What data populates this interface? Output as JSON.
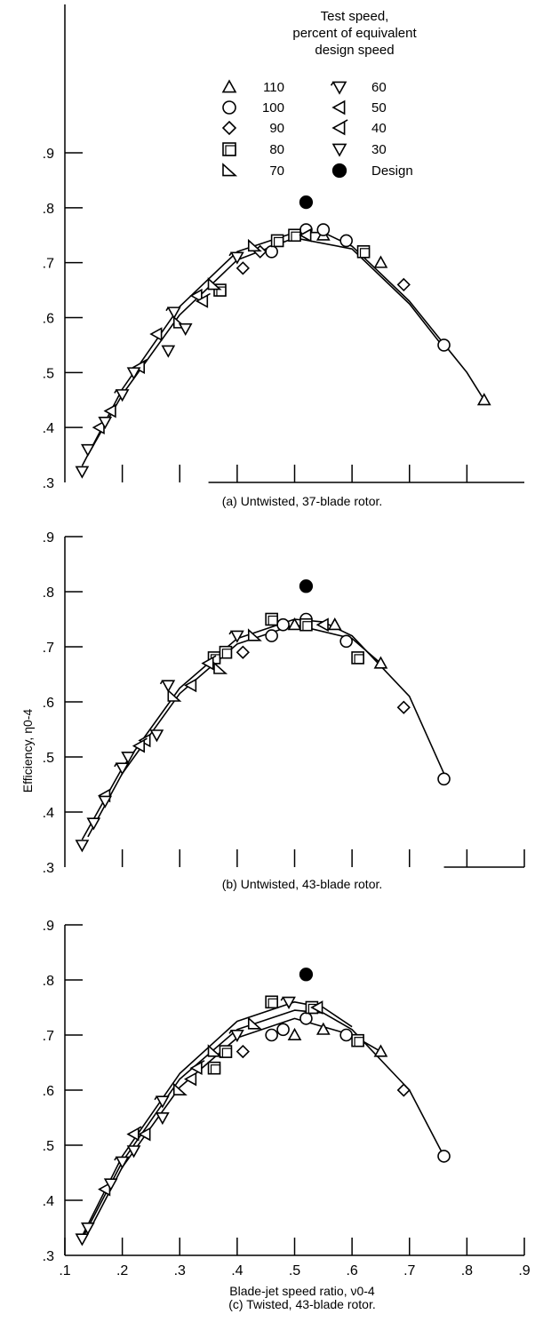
{
  "legend": {
    "title_lines": [
      "Test speed,",
      "percent of equivalent",
      "design speed"
    ],
    "entries": [
      {
        "label": "110",
        "marker": "triangle-up"
      },
      {
        "label": "100",
        "marker": "circle"
      },
      {
        "label": "90",
        "marker": "diamond"
      },
      {
        "label": "80",
        "marker": "square"
      },
      {
        "label": "70",
        "marker": "triangle-corner"
      },
      {
        "label": "60",
        "marker": "triangle-down-flag"
      },
      {
        "label": "50",
        "marker": "triangle-left"
      },
      {
        "label": "40",
        "marker": "triangle-left-flag"
      },
      {
        "label": "30",
        "marker": "triangle-down"
      },
      {
        "label": "Design",
        "marker": "filled-circle"
      }
    ]
  },
  "shared_axes": {
    "xlabel": "Blade-jet speed ratio, ν0-4",
    "ylabel": "Efficiency, η0-4",
    "x_ticks": [
      ".1",
      ".2",
      ".3",
      ".4",
      ".5",
      ".6",
      ".7",
      ".8",
      ".9"
    ],
    "y_ticks": [
      ".3",
      ".4",
      ".5",
      ".6",
      ".7",
      ".8",
      ".9"
    ]
  },
  "chart_data": [
    {
      "type": "scatter",
      "caption": "(a) Untwisted, 37-blade rotor.",
      "xlim": [
        0.1,
        0.9
      ],
      "ylim": [
        0.3,
        0.9
      ],
      "design_point": [
        0.52,
        0.81
      ],
      "series": [
        {
          "name": "110",
          "marker": "triangle-up",
          "points": [
            [
              0.55,
              0.75
            ],
            [
              0.65,
              0.7
            ],
            [
              0.83,
              0.45
            ]
          ]
        },
        {
          "name": "100",
          "marker": "circle",
          "points": [
            [
              0.46,
              0.72
            ],
            [
              0.52,
              0.76
            ],
            [
              0.55,
              0.76
            ],
            [
              0.59,
              0.74
            ],
            [
              0.76,
              0.55
            ]
          ]
        },
        {
          "name": "90",
          "marker": "diamond",
          "points": [
            [
              0.41,
              0.69
            ],
            [
              0.44,
              0.72
            ],
            [
              0.69,
              0.66
            ]
          ]
        },
        {
          "name": "80",
          "marker": "square",
          "points": [
            [
              0.37,
              0.65
            ],
            [
              0.47,
              0.74
            ],
            [
              0.5,
              0.75
            ],
            [
              0.62,
              0.72
            ]
          ]
        },
        {
          "name": "70",
          "marker": "triangle-corner",
          "points": [
            [
              0.3,
              0.59
            ],
            [
              0.36,
              0.66
            ],
            [
              0.43,
              0.73
            ]
          ]
        },
        {
          "name": "60",
          "marker": "triangle-down-flag",
          "points": [
            [
              0.2,
              0.46
            ],
            [
              0.29,
              0.61
            ],
            [
              0.4,
              0.71
            ]
          ]
        },
        {
          "name": "50",
          "marker": "triangle-left",
          "points": [
            [
              0.18,
              0.43
            ],
            [
              0.26,
              0.57
            ],
            [
              0.33,
              0.64
            ],
            [
              0.52,
              0.75
            ]
          ]
        },
        {
          "name": "40",
          "marker": "triangle-left-flag",
          "points": [
            [
              0.16,
              0.4
            ],
            [
              0.23,
              0.51
            ],
            [
              0.34,
              0.63
            ]
          ]
        },
        {
          "name": "30",
          "marker": "triangle-down",
          "points": [
            [
              0.13,
              0.32
            ],
            [
              0.14,
              0.36
            ],
            [
              0.17,
              0.41
            ],
            [
              0.22,
              0.5
            ],
            [
              0.28,
              0.54
            ],
            [
              0.31,
              0.58
            ]
          ]
        }
      ],
      "curves": [
        [
          [
            0.13,
            0.33
          ],
          [
            0.2,
            0.47
          ],
          [
            0.3,
            0.62
          ],
          [
            0.4,
            0.72
          ],
          [
            0.5,
            0.755
          ],
          [
            0.55,
            0.755
          ],
          [
            0.6,
            0.73
          ],
          [
            0.7,
            0.63
          ],
          [
            0.8,
            0.5
          ],
          [
            0.83,
            0.45
          ]
        ],
        [
          [
            0.14,
            0.35
          ],
          [
            0.2,
            0.46
          ],
          [
            0.3,
            0.605
          ],
          [
            0.4,
            0.705
          ],
          [
            0.5,
            0.745
          ],
          [
            0.6,
            0.725
          ],
          [
            0.7,
            0.625
          ],
          [
            0.76,
            0.545
          ]
        ]
      ]
    },
    {
      "type": "scatter",
      "caption": "(b) Untwisted, 43-blade rotor.",
      "xlim": [
        0.1,
        0.9
      ],
      "ylim": [
        0.3,
        0.9
      ],
      "design_point": [
        0.52,
        0.81
      ],
      "series": [
        {
          "name": "110",
          "marker": "triangle-up",
          "points": [
            [
              0.5,
              0.74
            ],
            [
              0.57,
              0.74
            ],
            [
              0.65,
              0.67
            ]
          ]
        },
        {
          "name": "100",
          "marker": "circle",
          "points": [
            [
              0.46,
              0.72
            ],
            [
              0.48,
              0.74
            ],
            [
              0.52,
              0.75
            ],
            [
              0.59,
              0.71
            ],
            [
              0.76,
              0.46
            ]
          ]
        },
        {
          "name": "90",
          "marker": "diamond",
          "points": [
            [
              0.41,
              0.69
            ],
            [
              0.69,
              0.59
            ]
          ]
        },
        {
          "name": "80",
          "marker": "square",
          "points": [
            [
              0.36,
              0.68
            ],
            [
              0.38,
              0.69
            ],
            [
              0.46,
              0.75
            ],
            [
              0.52,
              0.74
            ],
            [
              0.61,
              0.68
            ]
          ]
        },
        {
          "name": "70",
          "marker": "triangle-corner",
          "points": [
            [
              0.29,
              0.61
            ],
            [
              0.37,
              0.66
            ],
            [
              0.43,
              0.72
            ]
          ]
        },
        {
          "name": "60",
          "marker": "triangle-down-flag",
          "points": [
            [
              0.2,
              0.48
            ],
            [
              0.28,
              0.63
            ],
            [
              0.4,
              0.72
            ]
          ]
        },
        {
          "name": "50",
          "marker": "triangle-left",
          "points": [
            [
              0.17,
              0.43
            ],
            [
              0.24,
              0.53
            ],
            [
              0.32,
              0.63
            ],
            [
              0.55,
              0.74
            ]
          ]
        },
        {
          "name": "40",
          "marker": "triangle-left-flag",
          "points": [
            [
              0.23,
              0.52
            ],
            [
              0.35,
              0.67
            ]
          ]
        },
        {
          "name": "30",
          "marker": "triangle-down",
          "points": [
            [
              0.13,
              0.34
            ],
            [
              0.15,
              0.38
            ],
            [
              0.17,
              0.42
            ],
            [
              0.21,
              0.5
            ],
            [
              0.26,
              0.54
            ]
          ]
        }
      ],
      "curves": [
        [
          [
            0.13,
            0.35
          ],
          [
            0.2,
            0.48
          ],
          [
            0.3,
            0.625
          ],
          [
            0.4,
            0.715
          ],
          [
            0.5,
            0.75
          ],
          [
            0.55,
            0.745
          ],
          [
            0.6,
            0.72
          ],
          [
            0.7,
            0.61
          ],
          [
            0.76,
            0.47
          ]
        ],
        [
          [
            0.14,
            0.355
          ],
          [
            0.2,
            0.47
          ],
          [
            0.3,
            0.615
          ],
          [
            0.4,
            0.705
          ],
          [
            0.5,
            0.74
          ],
          [
            0.6,
            0.715
          ],
          [
            0.65,
            0.67
          ]
        ]
      ]
    },
    {
      "type": "scatter",
      "caption": "(c) Twisted, 43-blade rotor.",
      "xlim": [
        0.1,
        0.9
      ],
      "ylim": [
        0.3,
        0.9
      ],
      "design_point": [
        0.52,
        0.81
      ],
      "series": [
        {
          "name": "110",
          "marker": "triangle-up",
          "points": [
            [
              0.5,
              0.7
            ],
            [
              0.55,
              0.71
            ],
            [
              0.65,
              0.67
            ]
          ]
        },
        {
          "name": "100",
          "marker": "circle",
          "points": [
            [
              0.46,
              0.7
            ],
            [
              0.48,
              0.71
            ],
            [
              0.52,
              0.73
            ],
            [
              0.59,
              0.7
            ],
            [
              0.76,
              0.48
            ]
          ]
        },
        {
          "name": "90",
          "marker": "diamond",
          "points": [
            [
              0.41,
              0.67
            ],
            [
              0.69,
              0.6
            ]
          ]
        },
        {
          "name": "80",
          "marker": "square",
          "points": [
            [
              0.36,
              0.64
            ],
            [
              0.38,
              0.67
            ],
            [
              0.46,
              0.76
            ],
            [
              0.53,
              0.75
            ],
            [
              0.61,
              0.69
            ]
          ]
        },
        {
          "name": "70",
          "marker": "triangle-corner",
          "points": [
            [
              0.3,
              0.6
            ],
            [
              0.36,
              0.67
            ],
            [
              0.43,
              0.72
            ]
          ]
        },
        {
          "name": "60",
          "marker": "triangle-down-flag",
          "points": [
            [
              0.2,
              0.47
            ],
            [
              0.27,
              0.58
            ],
            [
              0.4,
              0.7
            ],
            [
              0.49,
              0.76
            ]
          ]
        },
        {
          "name": "50",
          "marker": "triangle-left",
          "points": [
            [
              0.17,
              0.42
            ],
            [
              0.24,
              0.52
            ],
            [
              0.32,
              0.62
            ],
            [
              0.54,
              0.75
            ]
          ]
        },
        {
          "name": "40",
          "marker": "triangle-left-flag",
          "points": [
            [
              0.22,
              0.52
            ],
            [
              0.33,
              0.64
            ]
          ]
        },
        {
          "name": "30",
          "marker": "triangle-down",
          "points": [
            [
              0.13,
              0.33
            ],
            [
              0.14,
              0.35
            ],
            [
              0.18,
              0.43
            ],
            [
              0.22,
              0.49
            ],
            [
              0.27,
              0.55
            ]
          ]
        }
      ],
      "curves": [
        [
          [
            0.13,
            0.335
          ],
          [
            0.2,
            0.48
          ],
          [
            0.3,
            0.63
          ],
          [
            0.4,
            0.725
          ],
          [
            0.5,
            0.76
          ],
          [
            0.55,
            0.75
          ],
          [
            0.6,
            0.715
          ]
        ],
        [
          [
            0.13,
            0.33
          ],
          [
            0.2,
            0.47
          ],
          [
            0.3,
            0.62
          ],
          [
            0.4,
            0.71
          ],
          [
            0.5,
            0.745
          ],
          [
            0.55,
            0.74
          ],
          [
            0.6,
            0.71
          ],
          [
            0.7,
            0.6
          ],
          [
            0.76,
            0.48
          ]
        ],
        [
          [
            0.14,
            0.34
          ],
          [
            0.2,
            0.46
          ],
          [
            0.3,
            0.605
          ],
          [
            0.4,
            0.695
          ],
          [
            0.5,
            0.73
          ],
          [
            0.6,
            0.7
          ],
          [
            0.65,
            0.67
          ]
        ]
      ]
    }
  ]
}
